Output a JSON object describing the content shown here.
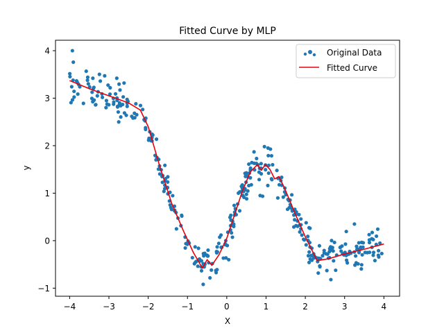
{
  "chart_data": {
    "type": "scatter",
    "title": "Fitted Curve by MLP",
    "xlabel": "X",
    "ylabel": "y",
    "xlim": [
      -4.36,
      4.4
    ],
    "ylim": [
      -1.17,
      4.22
    ],
    "xticks": [
      -4,
      -3,
      -2,
      -1,
      0,
      1,
      2,
      3,
      4
    ],
    "yticks": [
      -1,
      0,
      1,
      2,
      3,
      4
    ],
    "grid": false,
    "legend_position": "top-right",
    "colors": {
      "scatter": "#1f77b4",
      "line": "#e8000b"
    },
    "scatter_seed": 7,
    "scatter_count": 400,
    "scatter_xrange": [
      -4,
      4
    ],
    "scatter_noise_sd": 0.18,
    "series": [
      {
        "name": "Original Data",
        "kind": "scatter",
        "outliers": [
          [
            -3.93,
            4.0
          ],
          [
            -2.75,
            2.5
          ],
          [
            0.85,
            0.95
          ],
          [
            1.05,
            1.95
          ],
          [
            -0.6,
            -0.92
          ],
          [
            2.65,
            -0.82
          ],
          [
            3.25,
            0.35
          ],
          [
            -2.8,
            3.42
          ],
          [
            0.05,
            -0.4
          ],
          [
            1.3,
            0.9
          ]
        ]
      },
      {
        "name": "Fitted Curve",
        "kind": "line",
        "x": [
          -4.0,
          -3.5,
          -3.0,
          -2.5,
          -2.2,
          -2.0,
          -1.7,
          -1.4,
          -1.1,
          -0.85,
          -0.62,
          -0.5,
          -0.38,
          -0.2,
          0.0,
          0.2,
          0.4,
          0.6,
          0.78,
          0.88,
          0.98,
          1.1,
          1.22,
          1.33,
          1.5,
          1.75,
          2.0,
          2.3,
          2.6,
          3.0,
          3.5,
          4.0
        ],
        "y": [
          3.37,
          3.2,
          3.05,
          2.9,
          2.75,
          2.4,
          1.55,
          0.78,
          0.2,
          -0.25,
          -0.58,
          -0.4,
          -0.52,
          -0.3,
          0.05,
          0.55,
          1.05,
          1.45,
          1.6,
          1.48,
          1.6,
          1.5,
          1.3,
          1.35,
          1.05,
          0.55,
          0.08,
          -0.42,
          -0.38,
          -0.28,
          -0.18,
          -0.07
        ]
      }
    ]
  }
}
